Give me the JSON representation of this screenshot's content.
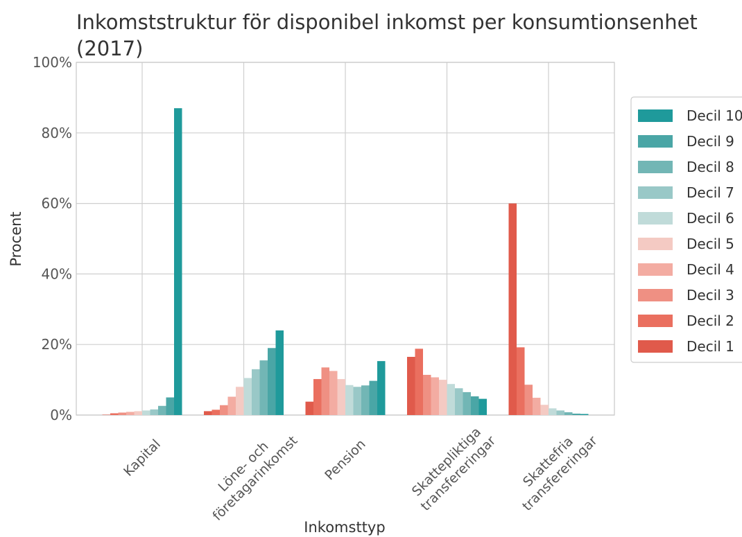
{
  "chart_data": {
    "type": "bar",
    "title": "Inkomststruktur för disponibel inkomst per konsumtionsenhet\n(2017)",
    "x_label": "Inkomsttyp",
    "y_label": "Procent",
    "categories": [
      "Kapital",
      "Löne- och\nföretagarinkomst",
      "Pension",
      "Skattepliktiga\ntransfereringar",
      "Skattefria\ntransfereringar"
    ],
    "series": [
      {
        "name": "Decil 1",
        "color": "#e05a4b",
        "values": [
          0.1,
          1.1,
          3.8,
          16.5,
          60
        ]
      },
      {
        "name": "Decil 2",
        "color": "#ea6f5f",
        "values": [
          0.5,
          1.5,
          10.2,
          18.8,
          19.2
        ]
      },
      {
        "name": "Decil 3",
        "color": "#ef9083",
        "values": [
          0.7,
          2.8,
          13.5,
          11.4,
          8.6
        ]
      },
      {
        "name": "Decil 4",
        "color": "#f3aca2",
        "values": [
          0.9,
          5.2,
          12.5,
          10.7,
          4.9
        ]
      },
      {
        "name": "Decil 5",
        "color": "#f4cac3",
        "values": [
          1.1,
          8.0,
          10.2,
          10.0,
          2.9
        ]
      },
      {
        "name": "Decil 6",
        "color": "#c0dbd9",
        "values": [
          1.3,
          10.5,
          8.5,
          8.8,
          1.9
        ]
      },
      {
        "name": "Decil 7",
        "color": "#99c8c7",
        "values": [
          1.6,
          13.0,
          8.0,
          7.6,
          1.3
        ]
      },
      {
        "name": "Decil 8",
        "color": "#72b6b5",
        "values": [
          2.6,
          15.5,
          8.4,
          6.5,
          0.8
        ]
      },
      {
        "name": "Decil 9",
        "color": "#4aa6a6",
        "values": [
          5.0,
          19.0,
          9.7,
          5.3,
          0.4
        ]
      },
      {
        "name": "Decil 10",
        "color": "#1f9a9b",
        "values": [
          87,
          24,
          15.3,
          4.6,
          0.3
        ]
      }
    ],
    "ylim": [
      0,
      100
    ],
    "yticks": [
      {
        "value": 0,
        "label": "0%"
      },
      {
        "value": 20,
        "label": "20%"
      },
      {
        "value": 40,
        "label": "40%"
      },
      {
        "value": 60,
        "label": "60%"
      },
      {
        "value": 80,
        "label": "80%"
      },
      {
        "value": 100,
        "label": "100%"
      }
    ],
    "grid": true,
    "legend": "right"
  }
}
